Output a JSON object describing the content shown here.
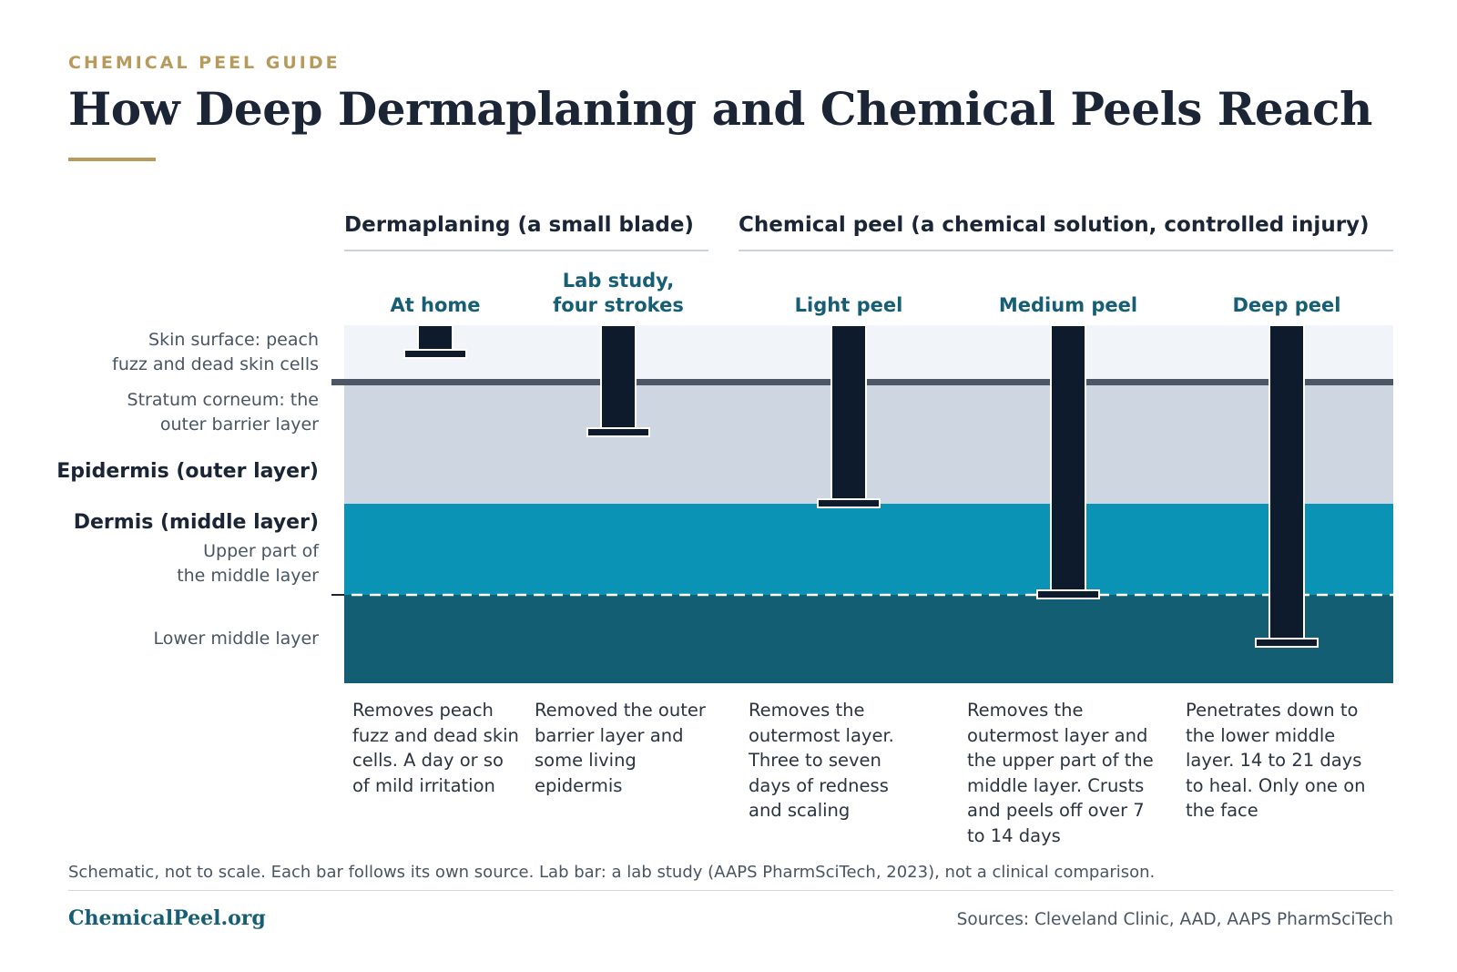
{
  "header": {
    "kicker": "CHEMICAL PEEL GUIDE",
    "title": "How Deep Dermaplaning and Chemical Peels Reach"
  },
  "groups": [
    {
      "label": "Dermaplaning (a small blade)"
    },
    {
      "label": "Chemical peel (a chemical solution, controlled injury)"
    }
  ],
  "layers": {
    "skin_surface": "Skin surface: peach fuzz and dead skin cells",
    "skin_surface_lines": [
      "Skin surface: peach",
      "fuzz and dead skin cells"
    ],
    "stratum_corneum_lines": [
      "Stratum corneum: the",
      "outer barrier layer"
    ],
    "epidermis": "Epidermis (outer layer)",
    "dermis": "Dermis (middle layer)",
    "upper_dermis_lines": [
      "Upper part of",
      "the middle layer"
    ],
    "lower_dermis": "Lower middle layer"
  },
  "columns": [
    {
      "label_lines": [
        "At home"
      ],
      "depth_layer": "skin_surface",
      "description": "Removes peach fuzz and dead skin cells. A day or so of mild irritation"
    },
    {
      "label_lines": [
        "Lab study,",
        "four strokes"
      ],
      "depth_layer": "stratum_corneum_into_epidermis",
      "description": "Removed the outer barrier layer and some living epidermis"
    },
    {
      "label_lines": [
        "Light peel"
      ],
      "depth_layer": "epidermis",
      "description": "Removes the outermost layer. Three to seven days of redness and scaling"
    },
    {
      "label_lines": [
        "Medium peel"
      ],
      "depth_layer": "upper_dermis",
      "description": "Removes the outermost layer and the upper part of the middle layer. Crusts and peels off over 7 to 14 days"
    },
    {
      "label_lines": [
        "Deep peel"
      ],
      "depth_layer": "lower_dermis",
      "description": "Penetrates down to the lower middle layer. 14 to 21 days to heal. Only one on the face"
    }
  ],
  "colors": {
    "surface": "#f1f4f8",
    "epidermis": "#cdd6e1",
    "upper_dermis": "#0b93b6",
    "lower_dermis": "#145e74",
    "bar": "#0e1b2d",
    "accent": "#b89a5c",
    "column_label": "#155e75"
  },
  "note": "Schematic, not to scale. Each bar follows its own source. Lab bar: a lab study (AAPS PharmSciTech, 2023), not a clinical comparison.",
  "footer": {
    "brand": "ChemicalPeel.org",
    "sources": "Sources: Cleveland Clinic, AAD, AAPS PharmSciTech"
  }
}
